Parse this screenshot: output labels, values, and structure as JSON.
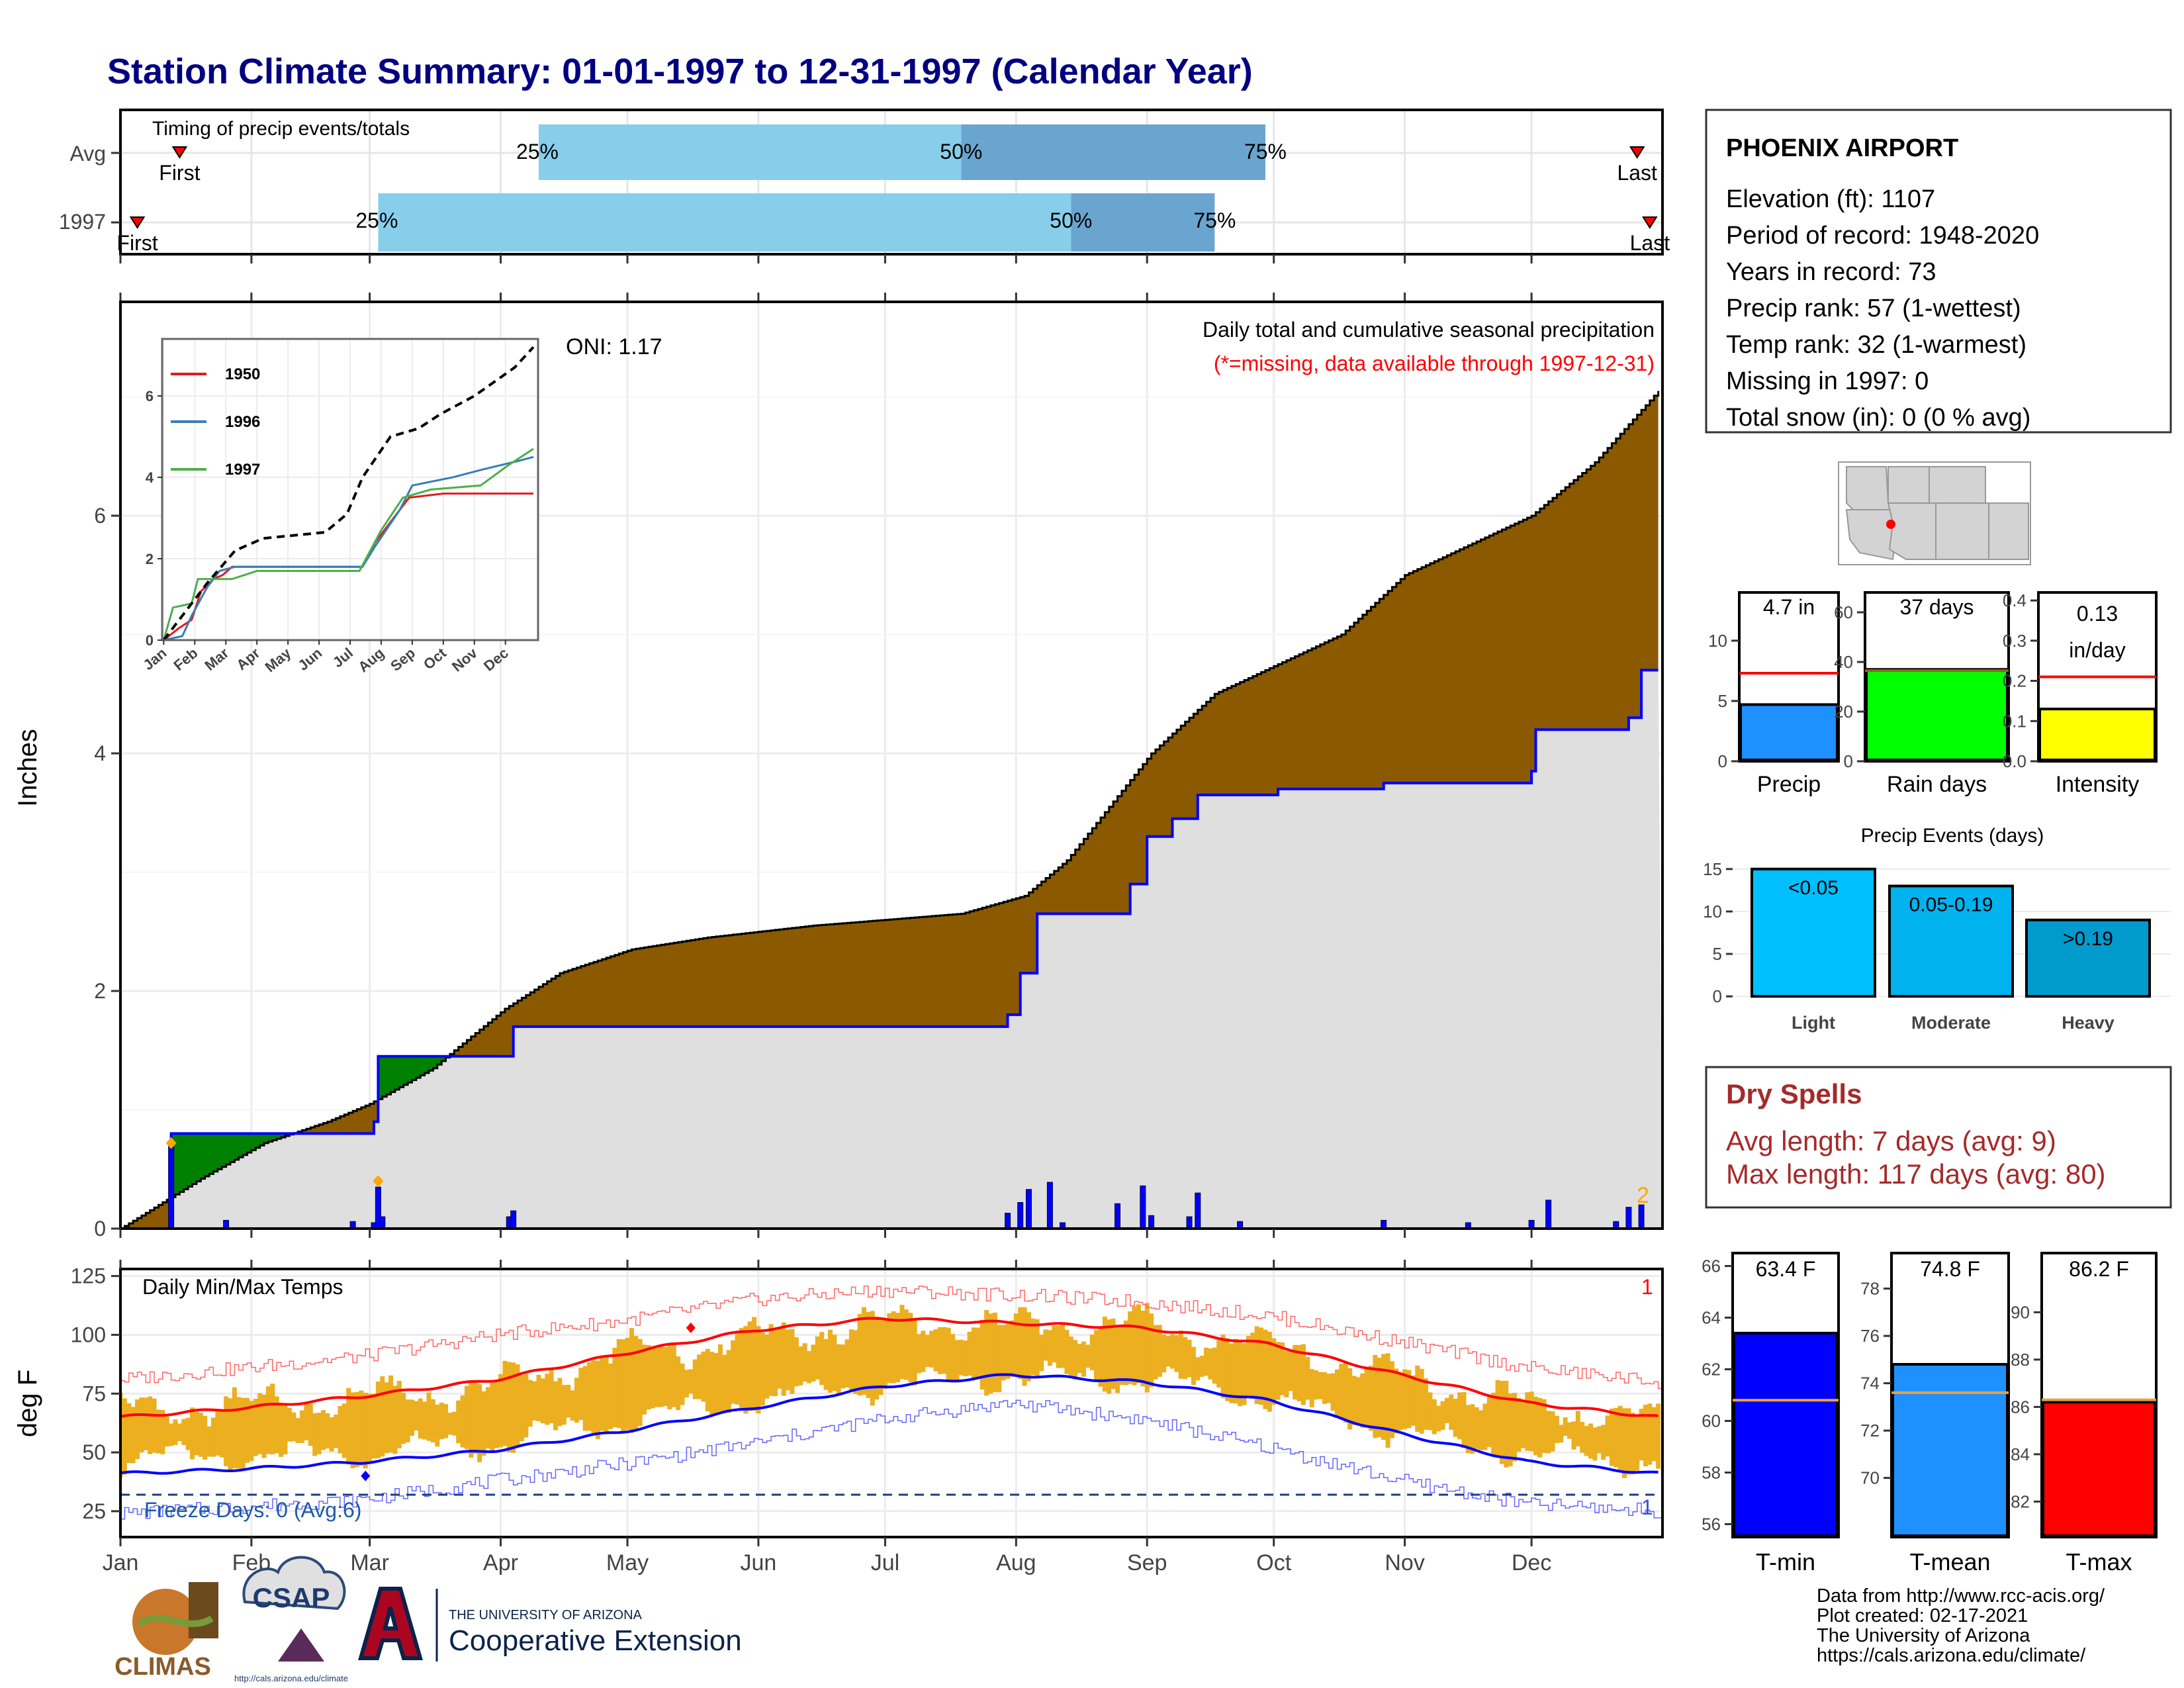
{
  "title": "Station Climate Summary: 01-01-1997 to 12-31-1997 (Calendar Year)",
  "colors": {
    "title": "#000080",
    "bar_light": "#87CEEB",
    "bar_dark": "#6AA5CF",
    "brown": "#8B5A00",
    "green": "#008000",
    "gray_fill": "#DFDFDF",
    "blue_line": "#0000FF",
    "red": "#FF0000",
    "gold": "#EBAF20",
    "precip_blue": "#1E90FF",
    "lime": "#00FF00",
    "yellow": "#FFFF00",
    "sky": "#00BFFF",
    "sky2": "#00B2EE",
    "sky3": "#009ACD",
    "dry_red": "#A52A2A"
  },
  "timing": {
    "label": "Timing of precip events/totals",
    "rows": [
      "Avg",
      "1997"
    ],
    "first_label": "First",
    "last_label": "Last",
    "p25": "25%",
    "p50": "50%",
    "p75": "75%"
  },
  "station": {
    "name": "PHOENIX AIRPORT",
    "lines": [
      "Elevation (ft): 1107",
      "Period of record: 1948-2020",
      "Years in record: 73",
      "Precip rank: 57 (1-wettest)",
      "Temp rank: 32 (1-warmest)",
      "Missing in 1997: 0",
      "Total snow (in): 0 (0 % avg)"
    ]
  },
  "precip_panel": {
    "ylabel": "Inches",
    "title": "Daily total and cumulative seasonal precipitation",
    "missing_note": "(*=missing, data available through 1997-12-31)",
    "oni": "ONI: 1.17",
    "corner_count": "2"
  },
  "temp_panel": {
    "ylabel": "deg F",
    "title": "Daily Min/Max Temps",
    "freeze_text": "Freeze Days: 0 (Avg:6)",
    "top_count": "1",
    "bottom_count": "1"
  },
  "months": [
    "Jan",
    "Feb",
    "Mar",
    "Apr",
    "May",
    "Jun",
    "Jul",
    "Aug",
    "Sep",
    "Oct",
    "Nov",
    "Dec"
  ],
  "summary_bars": {
    "precip": {
      "label": "Precip",
      "value_text": "4.7 in"
    },
    "rain_days": {
      "label": "Rain days",
      "value_text": "37 days"
    },
    "intensity": {
      "label": "Intensity",
      "value_text_1": "0.13",
      "value_text_2": "in/day"
    }
  },
  "events": {
    "title": "Precip Events (days)",
    "bars": [
      {
        "name": "Light",
        "text": "<0.05"
      },
      {
        "name": "Moderate",
        "text": "0.05-0.19"
      },
      {
        "name": "Heavy",
        "text": ">0.19"
      }
    ]
  },
  "dry_spells": {
    "title": "Dry Spells",
    "avg": "Avg length: 7 days (avg: 9)",
    "max": "Max length: 117 days (avg: 80)"
  },
  "temp_bars": {
    "tmin": {
      "label": "T-min",
      "value_text": "63.4 F"
    },
    "tmean": {
      "label": "T-mean",
      "value_text": "74.8 F"
    },
    "tmax": {
      "label": "T-max",
      "value_text": "86.2 F"
    }
  },
  "footer": {
    "lines": [
      "Data from http://www.rcc-acis.org/",
      "Plot created: 02-17-2021",
      "The University of Arizona",
      "https://cals.arizona.edu/climate/"
    ],
    "climas": "CLIMAS",
    "csap": "CSAP",
    "csap_url": "http://cals.arizona.edu/climate",
    "ua_small": "THE UNIVERSITY OF ARIZONA",
    "ua_big": "Cooperative Extension"
  },
  "chart_data": [
    {
      "type": "bar",
      "name": "timing",
      "categories": [
        "Avg",
        "1997"
      ],
      "unit": "day of year",
      "series": [
        {
          "name": "First",
          "values": [
            15,
            5
          ]
        },
        {
          "name": "25%",
          "values": [
            100,
            62
          ]
        },
        {
          "name": "50%",
          "values": [
            200,
            226
          ]
        },
        {
          "name": "75%",
          "values": [
            272,
            260
          ]
        },
        {
          "name": "Last",
          "values": [
            360,
            363
          ]
        }
      ],
      "xlim": [
        1,
        366
      ]
    },
    {
      "type": "area",
      "title": "Daily total and cumulative seasonal precipitation",
      "ylabel": "Inches",
      "ylim": [
        0,
        7.8
      ],
      "yticks": [
        0,
        2,
        4,
        6
      ],
      "avg_cumulative": [
        [
          1,
          0
        ],
        [
          20,
          0.42
        ],
        [
          35,
          0.72
        ],
        [
          50,
          0.9
        ],
        [
          60,
          1.05
        ],
        [
          75,
          1.35
        ],
        [
          80,
          1.5
        ],
        [
          92,
          1.85
        ],
        [
          105,
          2.15
        ],
        [
          122,
          2.35
        ],
        [
          140,
          2.45
        ],
        [
          165,
          2.55
        ],
        [
          200,
          2.65
        ],
        [
          215,
          2.8
        ],
        [
          225,
          3.1
        ],
        [
          235,
          3.55
        ],
        [
          245,
          4.0
        ],
        [
          260,
          4.5
        ],
        [
          290,
          5.0
        ],
        [
          305,
          5.5
        ],
        [
          335,
          6.0
        ],
        [
          350,
          6.45
        ],
        [
          365,
          7.05
        ]
      ],
      "cumulative_1997": [
        [
          1,
          0
        ],
        [
          12,
          0
        ],
        [
          13,
          0.8
        ],
        [
          60,
          0.8
        ],
        [
          61,
          0.9
        ],
        [
          62,
          1.45
        ],
        [
          93,
          1.45
        ],
        [
          94,
          1.7
        ],
        [
          210,
          1.7
        ],
        [
          211,
          1.8
        ],
        [
          214,
          2.15
        ],
        [
          218,
          2.65
        ],
        [
          238,
          2.65
        ],
        [
          240,
          2.9
        ],
        [
          244,
          3.3
        ],
        [
          250,
          3.45
        ],
        [
          256,
          3.65
        ],
        [
          275,
          3.7
        ],
        [
          300,
          3.75
        ],
        [
          335,
          3.85
        ],
        [
          336,
          4.2
        ],
        [
          358,
          4.3
        ],
        [
          361,
          4.7
        ],
        [
          365,
          4.7
        ]
      ],
      "daily_1997": [
        [
          13,
          0.7
        ],
        [
          26,
          0.07
        ],
        [
          56,
          0.06
        ],
        [
          61,
          0.05
        ],
        [
          62,
          0.35
        ],
        [
          63,
          0.1
        ],
        [
          93,
          0.1
        ],
        [
          94,
          0.15
        ],
        [
          211,
          0.13
        ],
        [
          214,
          0.22
        ],
        [
          216,
          0.33
        ],
        [
          221,
          0.39
        ],
        [
          224,
          0.05
        ],
        [
          237,
          0.21
        ],
        [
          243,
          0.36
        ],
        [
          245,
          0.11
        ],
        [
          254,
          0.1
        ],
        [
          256,
          0.3
        ],
        [
          266,
          0.06
        ],
        [
          300,
          0.07
        ],
        [
          320,
          0.05
        ],
        [
          335,
          0.07
        ],
        [
          339,
          0.24
        ],
        [
          355,
          0.06
        ],
        [
          358,
          0.18
        ],
        [
          361,
          0.2
        ]
      ],
      "marks": [
        [
          13,
          0.72
        ],
        [
          62,
          0.4
        ]
      ]
    },
    {
      "type": "line",
      "name": "inset_cumulative",
      "x": [
        "Jan",
        "Feb",
        "Mar",
        "Apr",
        "May",
        "Jun",
        "Jul",
        "Aug",
        "Sep",
        "Oct",
        "Nov",
        "Dec"
      ],
      "ylim": [
        0,
        7.4
      ],
      "yticks": [
        0,
        2,
        4,
        6
      ],
      "series": [
        {
          "name": "1950",
          "points": [
            [
              0,
              0
            ],
            [
              0.5,
              0.3
            ],
            [
              0.9,
              0.5
            ],
            [
              1.2,
              1.2
            ],
            [
              1.6,
              1.5
            ],
            [
              1.9,
              1.6
            ],
            [
              2.2,
              1.8
            ],
            [
              6.4,
              1.8
            ],
            [
              6.8,
              2.4
            ],
            [
              7.4,
              3.0
            ],
            [
              7.9,
              3.5
            ],
            [
              9,
              3.6
            ],
            [
              10,
              3.6
            ],
            [
              11.9,
              3.6
            ]
          ]
        },
        {
          "name": "1996",
          "points": [
            [
              0,
              0
            ],
            [
              0.6,
              0.1
            ],
            [
              0.9,
              0.6
            ],
            [
              1.4,
              1.3
            ],
            [
              1.8,
              1.7
            ],
            [
              2.3,
              1.8
            ],
            [
              6.4,
              1.8
            ],
            [
              6.8,
              2.3
            ],
            [
              7.6,
              3.2
            ],
            [
              8.0,
              3.8
            ],
            [
              9.3,
              4.0
            ],
            [
              10.3,
              4.2
            ],
            [
              11.4,
              4.4
            ],
            [
              11.9,
              4.5
            ]
          ]
        },
        {
          "name": "1997",
          "points": [
            [
              0,
              0
            ],
            [
              0.3,
              0.8
            ],
            [
              0.9,
              0.9
            ],
            [
              1.1,
              1.5
            ],
            [
              2.2,
              1.5
            ],
            [
              3.0,
              1.7
            ],
            [
              6.3,
              1.7
            ],
            [
              7.0,
              2.7
            ],
            [
              7.7,
              3.5
            ],
            [
              8.6,
              3.7
            ],
            [
              10.2,
              3.8
            ],
            [
              11.1,
              4.3
            ],
            [
              11.9,
              4.7
            ]
          ]
        },
        {
          "name": "avg",
          "points": [
            [
              0,
              0
            ],
            [
              0.5,
              0.5
            ],
            [
              1.4,
              1.4
            ],
            [
              2.3,
              2.2
            ],
            [
              3.2,
              2.5
            ],
            [
              5.2,
              2.65
            ],
            [
              5.9,
              3.1
            ],
            [
              6.4,
              4.0
            ],
            [
              7.3,
              5.0
            ],
            [
              8.2,
              5.2
            ],
            [
              8.9,
              5.55
            ],
            [
              10.0,
              6.0
            ],
            [
              11.3,
              6.7
            ],
            [
              11.9,
              7.2
            ]
          ]
        }
      ]
    },
    {
      "type": "line",
      "title": "Daily Min/Max Temps",
      "ylabel": "deg F",
      "ylim": [
        14,
        128
      ],
      "yticks": [
        25,
        50,
        75,
        100,
        125
      ],
      "freeze_line": 32,
      "avg_max": [
        [
          1,
          65
        ],
        [
          31,
          69
        ],
        [
          59,
          74
        ],
        [
          90,
          81
        ],
        [
          120,
          92
        ],
        [
          151,
          102
        ],
        [
          181,
          107
        ],
        [
          212,
          105
        ],
        [
          243,
          103
        ],
        [
          273,
          96
        ],
        [
          304,
          83
        ],
        [
          334,
          71
        ],
        [
          365,
          65
        ]
      ],
      "avg_min": [
        [
          1,
          41
        ],
        [
          31,
          43
        ],
        [
          59,
          46
        ],
        [
          90,
          51
        ],
        [
          120,
          59
        ],
        [
          151,
          69
        ],
        [
          181,
          78
        ],
        [
          212,
          83
        ],
        [
          243,
          80
        ],
        [
          273,
          72
        ],
        [
          304,
          58
        ],
        [
          334,
          46
        ],
        [
          365,
          41
        ]
      ],
      "record_max": [
        [
          1,
          81
        ],
        [
          31,
          86
        ],
        [
          59,
          91
        ],
        [
          90,
          100
        ],
        [
          120,
          106
        ],
        [
          151,
          115
        ],
        [
          181,
          119
        ],
        [
          212,
          117
        ],
        [
          243,
          114
        ],
        [
          273,
          108
        ],
        [
          304,
          97
        ],
        [
          334,
          86
        ],
        [
          365,
          80
        ]
      ],
      "record_min": [
        [
          1,
          24
        ],
        [
          31,
          27
        ],
        [
          59,
          30
        ],
        [
          90,
          38
        ],
        [
          120,
          45
        ],
        [
          151,
          54
        ],
        [
          181,
          64
        ],
        [
          212,
          71
        ],
        [
          243,
          64
        ],
        [
          273,
          52
        ],
        [
          304,
          38
        ],
        [
          334,
          28
        ],
        [
          365,
          25
        ]
      ],
      "mean_max_1997": [
        [
          1,
          68
        ],
        [
          31,
          70
        ],
        [
          59,
          73
        ],
        [
          90,
          78
        ],
        [
          120,
          92
        ],
        [
          151,
          99
        ],
        [
          181,
          105
        ],
        [
          212,
          104
        ],
        [
          243,
          104
        ],
        [
          273,
          96
        ],
        [
          304,
          82
        ],
        [
          334,
          70
        ],
        [
          365,
          64
        ]
      ],
      "mean_min_1997": [
        [
          1,
          47
        ],
        [
          31,
          48
        ],
        [
          59,
          50
        ],
        [
          90,
          54
        ],
        [
          120,
          64
        ],
        [
          151,
          72
        ],
        [
          181,
          79
        ],
        [
          212,
          82
        ],
        [
          243,
          81
        ],
        [
          273,
          73
        ],
        [
          304,
          58
        ],
        [
          334,
          50
        ],
        [
          365,
          46
        ]
      ]
    },
    {
      "type": "bar",
      "name": "season_totals",
      "categories": [
        "Precip",
        "Rain days",
        "Intensity"
      ],
      "values": [
        4.7,
        37,
        0.13
      ],
      "averages": [
        7.3,
        36.5,
        0.21
      ],
      "ylims": [
        [
          0,
          14
        ],
        [
          0,
          68
        ],
        [
          0,
          0.42
        ]
      ]
    },
    {
      "type": "bar",
      "title": "Precip Events (days)",
      "categories": [
        "Light",
        "Moderate",
        "Heavy"
      ],
      "values": [
        15,
        13,
        9
      ],
      "ylim": [
        -1,
        16
      ],
      "yticks": [
        0,
        5,
        10,
        15
      ]
    },
    {
      "type": "bar",
      "name": "temperature_means",
      "categories": [
        "T-min",
        "T-mean",
        "T-max"
      ],
      "values": [
        63.4,
        74.8,
        86.2
      ],
      "averages": [
        60.8,
        73.6,
        86.3
      ],
      "ylims": [
        [
          55.5,
          66.5
        ],
        [
          67.5,
          79.5
        ],
        [
          80.5,
          92.5
        ]
      ]
    }
  ]
}
